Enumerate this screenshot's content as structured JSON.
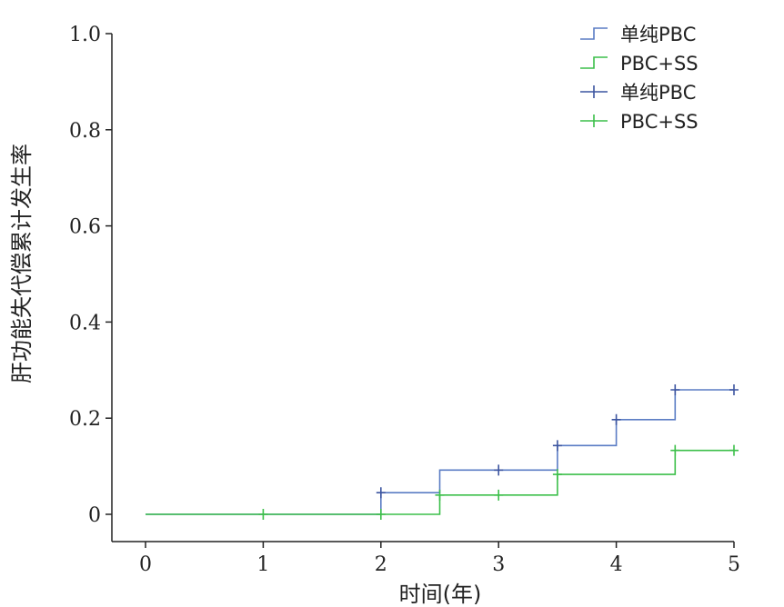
{
  "chart_data": {
    "type": "line",
    "subtype": "kaplan-meier-cumulative-incidence",
    "xlabel": "时间(年)",
    "ylabel": "肝功能失代偿累计发生率",
    "xlim": [
      0,
      5
    ],
    "ylim": [
      0,
      1.0
    ],
    "x_ticks": [
      0,
      1,
      2,
      3,
      4,
      5
    ],
    "x_tick_labels": [
      "0",
      "1",
      "2",
      "3",
      "4",
      "5"
    ],
    "y_ticks": [
      0,
      0.2,
      0.4,
      0.6,
      0.8,
      1.0
    ],
    "y_tick_labels": [
      "0",
      "0.2",
      "0.4",
      "0.6",
      "0.8",
      "1.0"
    ],
    "grid": false,
    "legend_position": "top-right",
    "legend": [
      {
        "label": "单纯PBC",
        "kind": "step",
        "color": "#5a7cc4"
      },
      {
        "label": "PBC+SS",
        "kind": "step",
        "color": "#3cbf4a"
      },
      {
        "label": "单纯PBC",
        "kind": "censor",
        "color": "#3c55a0"
      },
      {
        "label": "PBC+SS",
        "kind": "censor",
        "color": "#3cbf4a"
      }
    ],
    "series": [
      {
        "name": "单纯PBC",
        "color": "#5a7cc4",
        "censor_color": "#3c55a0",
        "steps": [
          [
            0,
            0
          ],
          [
            2,
            0.045
          ],
          [
            2.5,
            0.092
          ],
          [
            3.5,
            0.143
          ],
          [
            4,
            0.197
          ],
          [
            4.5,
            0.259
          ]
        ],
        "x_end": 5,
        "censored": [
          [
            2,
            0.045
          ],
          [
            3,
            0.092
          ],
          [
            3.5,
            0.143
          ],
          [
            4,
            0.197
          ],
          [
            4.5,
            0.259
          ],
          [
            5,
            0.259
          ]
        ]
      },
      {
        "name": "PBC+SS",
        "color": "#3cbf4a",
        "censor_color": "#3cbf4a",
        "steps": [
          [
            0,
            0
          ],
          [
            2.5,
            0.04
          ],
          [
            3.5,
            0.083
          ],
          [
            4.5,
            0.133
          ]
        ],
        "x_end": 5,
        "censored": [
          [
            1,
            0
          ],
          [
            2,
            0
          ],
          [
            2.5,
            0.04
          ],
          [
            3,
            0.04
          ],
          [
            3.5,
            0.083
          ],
          [
            4.5,
            0.133
          ],
          [
            5,
            0.133
          ]
        ]
      }
    ]
  }
}
